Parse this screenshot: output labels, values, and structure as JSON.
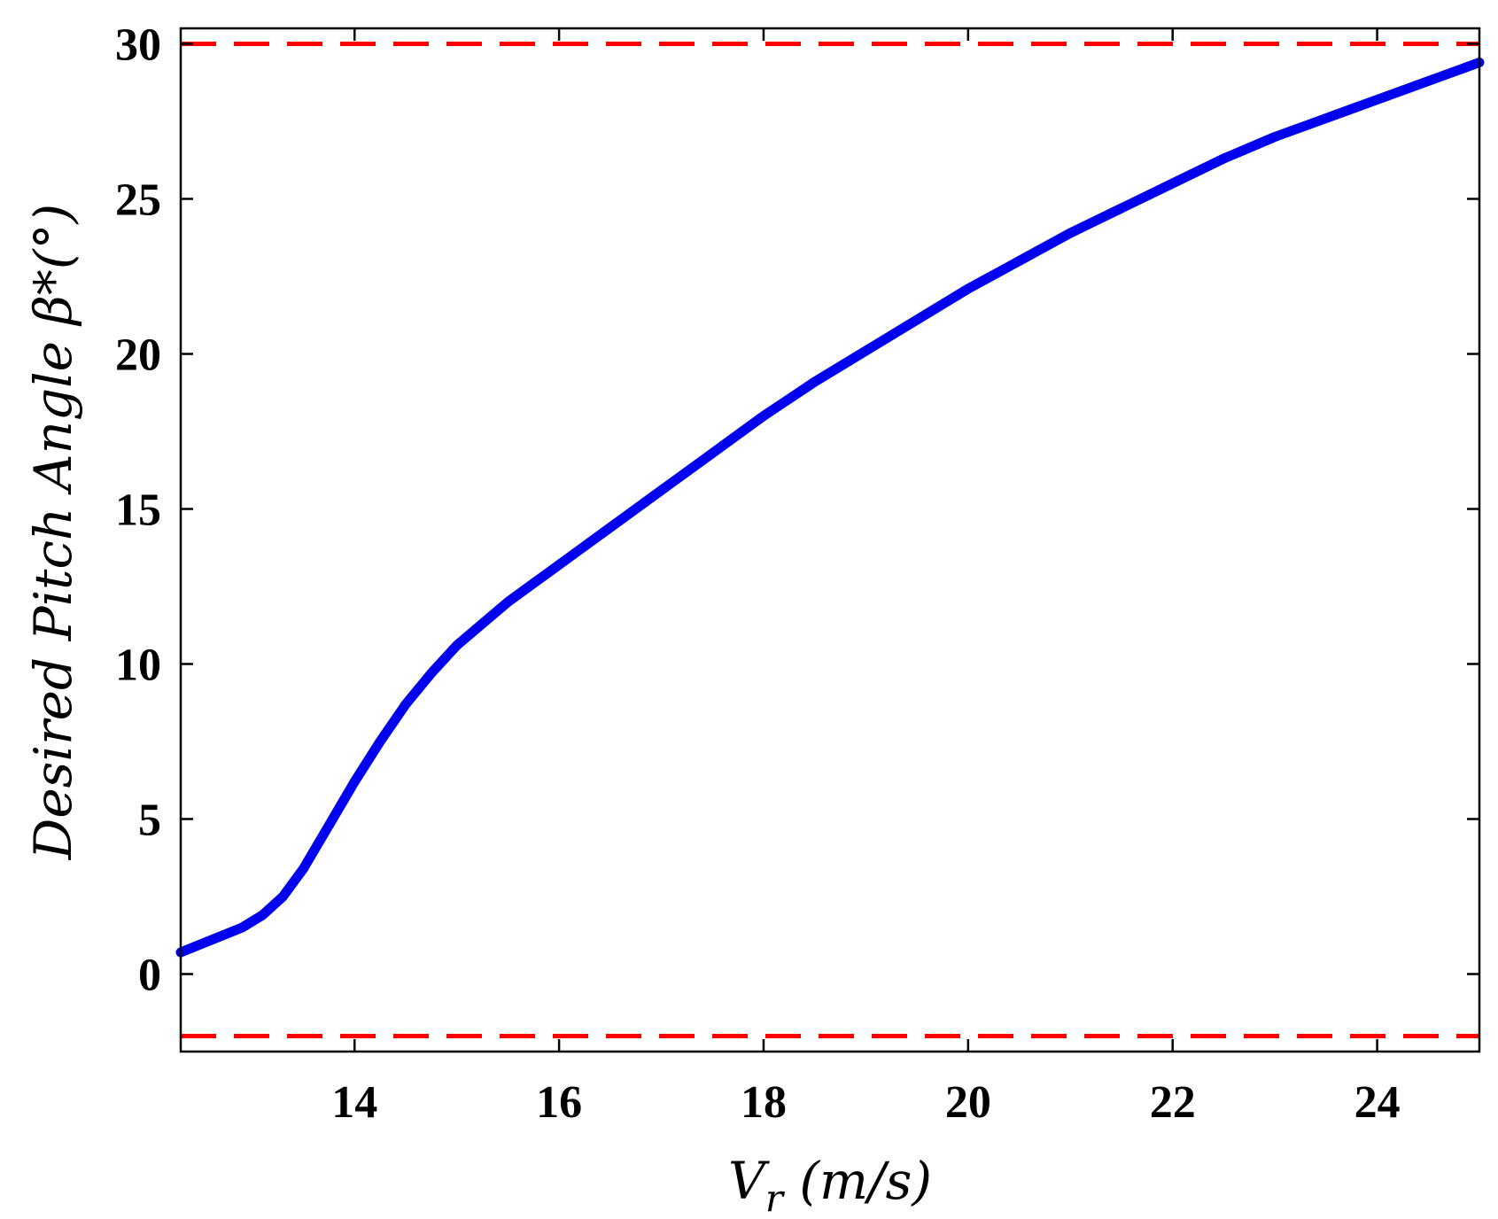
{
  "chart_data": {
    "type": "line",
    "xlabel": "V_r (m/s)",
    "xlabel_parts": {
      "main": "V",
      "sub": "r",
      "units": " (m/s)"
    },
    "ylabel": "Desired Pitch Angle β*(°)",
    "xlim": [
      12.3,
      25
    ],
    "ylim": [
      -2.5,
      30.5
    ],
    "x_ticks": [
      14,
      16,
      18,
      20,
      22,
      24
    ],
    "y_ticks": [
      0,
      5,
      10,
      15,
      20,
      25,
      30
    ],
    "grid": false,
    "series": [
      {
        "color": "#0000ee",
        "style": "solid",
        "x": [
          12.3,
          12.6,
          12.9,
          13.1,
          13.3,
          13.5,
          13.75,
          14.0,
          14.25,
          14.5,
          14.75,
          15.0,
          15.25,
          15.5,
          15.75,
          16.0,
          16.5,
          17.0,
          17.5,
          18.0,
          18.5,
          19.0,
          19.5,
          20.0,
          20.5,
          21.0,
          21.5,
          22.0,
          22.5,
          23.0,
          23.5,
          24.0,
          24.5,
          25.0
        ],
        "y": [
          0.7,
          1.1,
          1.5,
          1.9,
          2.5,
          3.4,
          4.8,
          6.2,
          7.5,
          8.7,
          9.7,
          10.6,
          11.3,
          12.0,
          12.6,
          13.2,
          14.4,
          15.6,
          16.8,
          18.0,
          19.1,
          20.1,
          21.1,
          22.1,
          23.0,
          23.9,
          24.7,
          25.5,
          26.3,
          27.0,
          27.6,
          28.2,
          28.8,
          29.4
        ]
      },
      {
        "color": "#ff0000",
        "style": "dashed",
        "x": [
          12.3,
          25
        ],
        "y": [
          30,
          30
        ]
      },
      {
        "color": "#ff0000",
        "style": "dashed",
        "x": [
          12.3,
          25
        ],
        "y": [
          -2,
          -2
        ]
      }
    ]
  }
}
